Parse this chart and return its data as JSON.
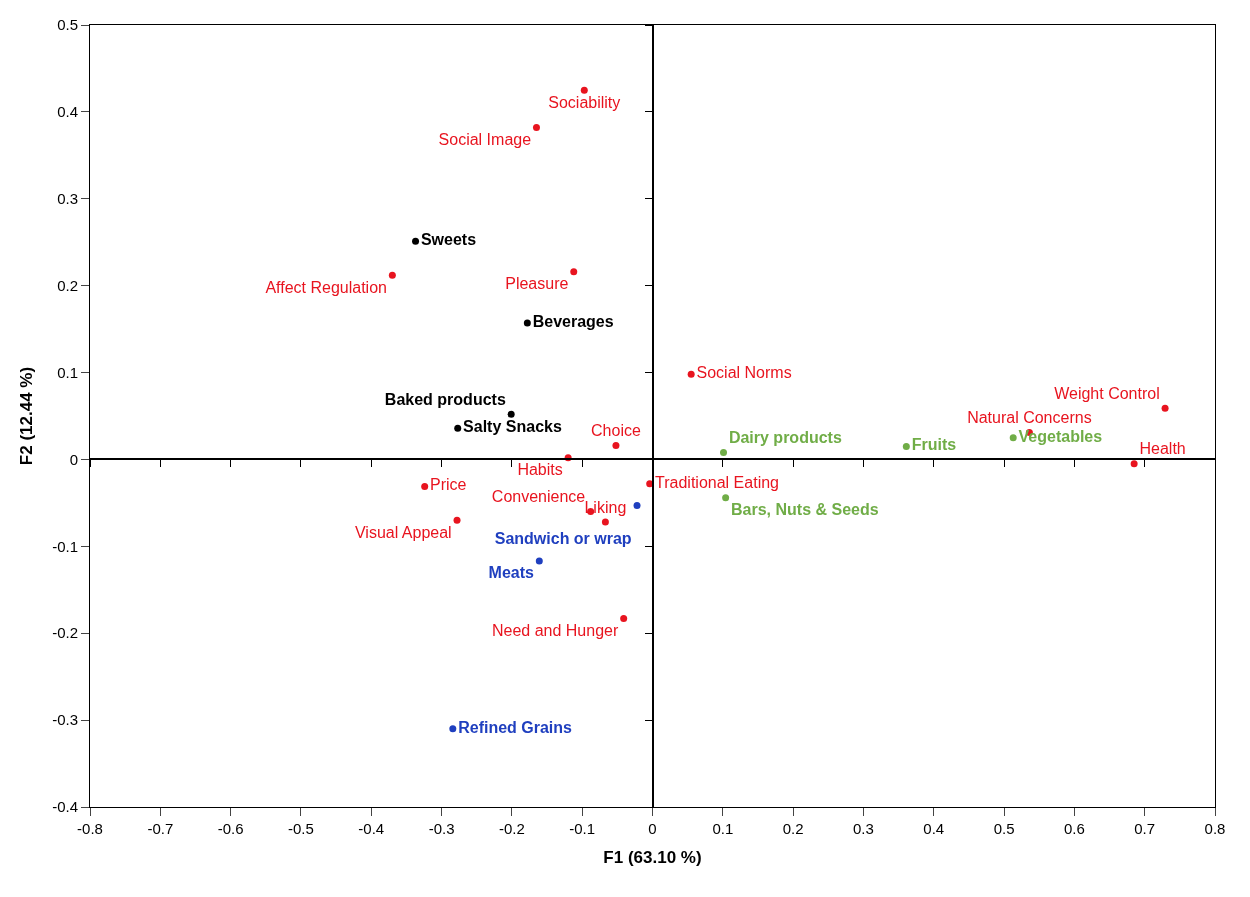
{
  "chart_data": {
    "type": "scatter",
    "xlabel": "F1 (63.10 %)",
    "ylabel": "F2 (12.44 %)",
    "xlim": [
      -0.8,
      0.8
    ],
    "xticks": [
      -0.8,
      -0.7,
      -0.6,
      -0.5,
      -0.4,
      -0.3,
      -0.2,
      -0.1,
      0,
      0.1,
      0.2,
      0.3,
      0.4,
      0.5,
      0.6,
      0.7,
      0.8
    ],
    "ylim": [
      -0.4,
      0.5
    ],
    "yticks": [
      -0.4,
      -0.3,
      -0.2,
      -0.1,
      0,
      0.1,
      0.2,
      0.3,
      0.4,
      0.5
    ],
    "marker": "circle",
    "series": [
      {
        "color": "#e8141f",
        "x": [
          -0.097,
          -0.165,
          -0.37,
          -0.112,
          0.055,
          -0.052,
          -0.067,
          -0.12,
          -0.088,
          -0.324,
          -0.278,
          -0.004,
          -0.041,
          0.536,
          0.729,
          0.685
        ],
        "values": [
          0.425,
          0.382,
          0.212,
          0.216,
          0.098,
          0.016,
          -0.072,
          0.002,
          -0.06,
          -0.031,
          -0.07,
          -0.028,
          -0.183,
          0.031,
          0.059,
          -0.005
        ],
        "value_labels": [
          "Sociability",
          "Social Image",
          "Affect Regulation",
          "Pleasure",
          "Social Norms",
          "Choice",
          "Liking",
          "Habits",
          "Convenience",
          "Price",
          "Visual Appeal",
          "Traditional Eating",
          "Need and Hunger",
          "Natural Concerns",
          "Weight Control",
          "Health"
        ]
      },
      {
        "color": "#000000",
        "x": [
          -0.337,
          -0.178,
          -0.201,
          -0.277
        ],
        "values": [
          0.251,
          0.157,
          0.052,
          0.036
        ],
        "value_labels": [
          "Sweets",
          "Beverages",
          "Baked products",
          "Salty Snacks"
        ]
      },
      {
        "color": "#1f3fbf",
        "x": [
          -0.022,
          -0.161,
          -0.284
        ],
        "values": [
          -0.053,
          -0.117,
          -0.31
        ],
        "value_labels": [
          "Sandwich or wrap",
          "Meats",
          "Refined Grains"
        ]
      },
      {
        "color": "#70ad47",
        "x": [
          0.101,
          0.104,
          0.361,
          0.513
        ],
        "values": [
          0.008,
          -0.044,
          0.015,
          0.025
        ],
        "value_labels": [
          "Dairy products",
          "Bars, Nuts & Seeds",
          "Fruits",
          "Vegetables"
        ]
      }
    ]
  }
}
